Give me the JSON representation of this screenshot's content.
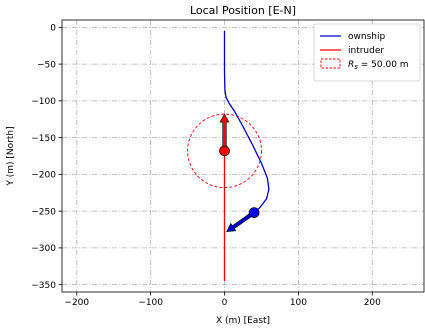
{
  "chart_data": {
    "type": "line",
    "title": "Local Position [E-N]",
    "xlabel": "X (m) [East]",
    "ylabel": "Y (m) [North]",
    "xlim": [
      -220,
      270
    ],
    "ylim": [
      -360,
      10
    ],
    "xticks": [
      -200,
      -100,
      0,
      100,
      200
    ],
    "yticks": [
      0,
      -50,
      -100,
      -150,
      -200,
      -250,
      -300,
      -350
    ],
    "grid": true,
    "legend": {
      "placement": "top-right",
      "items": [
        {
          "label": "ownship",
          "style": "solid",
          "color": "#0000cc"
        },
        {
          "label": "intruder",
          "style": "solid",
          "color": "#ff0000"
        },
        {
          "label_main": "R",
          "label_sub": "s",
          "label_rest": " = 50.00 m",
          "style": "dashed",
          "color": "#ff0000"
        }
      ]
    },
    "series": [
      {
        "name": "ownship",
        "color": "#0000cc",
        "points": [
          [
            0,
            -5
          ],
          [
            0,
            -60
          ],
          [
            0.5,
            -85
          ],
          [
            2,
            -95
          ],
          [
            6,
            -103
          ],
          [
            14,
            -115
          ],
          [
            25,
            -135
          ],
          [
            38,
            -160
          ],
          [
            50,
            -185
          ],
          [
            58,
            -205
          ],
          [
            60,
            -220
          ],
          [
            57,
            -233
          ],
          [
            48,
            -245
          ],
          [
            40,
            -252
          ]
        ],
        "marker": {
          "x": 40,
          "y": -252,
          "color": "#0000ff"
        },
        "heading": {
          "from": [
            40,
            -252
          ],
          "to": [
            3,
            -278
          ]
        }
      },
      {
        "name": "intruder",
        "color": "#ff0000",
        "points": [
          [
            0,
            -345
          ],
          [
            0,
            -168
          ]
        ],
        "marker": {
          "x": 0,
          "y": -168,
          "color": "#ff0000"
        },
        "heading": {
          "from": [
            0,
            -168
          ],
          "to": [
            0,
            -118
          ]
        }
      }
    ],
    "circle": {
      "cx": 0,
      "cy": -168,
      "r": 50,
      "color": "#ff0000",
      "style": "dashed"
    }
  }
}
